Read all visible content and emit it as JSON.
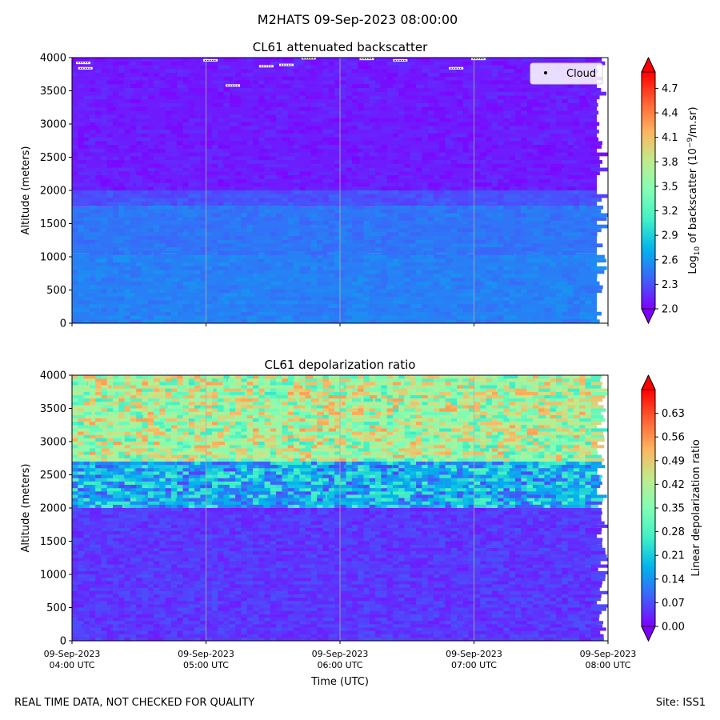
{
  "figure": {
    "suptitle": "M2HATS 09-Sep-2023 08:00:00",
    "footer_left": "REAL TIME DATA, NOT CHECKED FOR QUALITY",
    "footer_right": "Site: ISS1"
  },
  "colors": {
    "rainbow": [
      "#8000ff",
      "#3f61fa",
      "#01b3ec",
      "#3ff0c7",
      "#81feb4",
      "#c0eb8d",
      "#ffb360",
      "#ff6032",
      "#ff0000"
    ],
    "gridline": "#b0b0b0",
    "cloud_marker": "#000000"
  },
  "chart_data": [
    {
      "type": "heatmap",
      "title": "CL61 attenuated backscatter",
      "xlabel": "",
      "ylabel": "Altitude (meters)",
      "x_ticks": [
        "09-Sep-2023\n04:00 UTC",
        "09-Sep-2023\n05:00 UTC",
        "09-Sep-2023\n06:00 UTC",
        "09-Sep-2023\n07:00 UTC",
        "09-Sep-2023\n08:00 UTC"
      ],
      "x_tick_labels_shown": false,
      "y_ticks": [
        0,
        500,
        1000,
        1500,
        2000,
        2500,
        3000,
        3500,
        4000
      ],
      "ylim": [
        0,
        4000
      ],
      "xlim": [
        "2023-09-09T04:00",
        "2023-09-09T08:00"
      ],
      "data_end": "2023-09-09T07:55",
      "grid": "vertical lines at hourly ticks",
      "colorbar": {
        "label": "Log10 of backscatter (10^-9/m.sr)",
        "label_parts": [
          "Log",
          "10",
          " of backscatter (10",
          "−9",
          "/m.sr)"
        ],
        "range": [
          2.0,
          4.9
        ],
        "ticks": [
          "2.0",
          "2.3",
          "2.6",
          "2.9",
          "3.2",
          "3.5",
          "3.8",
          "4.1",
          "4.4",
          "4.7"
        ],
        "extend": "both"
      },
      "legend": {
        "entries": [
          "Cloud"
        ],
        "location": "upper right"
      },
      "layers": [
        {
          "alt_range": [
            0,
            1050
          ],
          "value": 2.5
        },
        {
          "alt_range": [
            1050,
            1750
          ],
          "value": 2.45
        },
        {
          "alt_range": [
            1750,
            2000
          ],
          "value": 2.3
        },
        {
          "alt_range": [
            2000,
            4000
          ],
          "value": 2.1
        }
      ],
      "cloud_points": [
        {
          "time": "04:05",
          "alt": 3920
        },
        {
          "time": "04:06",
          "alt": 3840
        },
        {
          "time": "05:02",
          "alt": 3960
        },
        {
          "time": "05:12",
          "alt": 3580
        },
        {
          "time": "05:27",
          "alt": 3870
        },
        {
          "time": "05:36",
          "alt": 3890
        },
        {
          "time": "05:46",
          "alt": 3990
        },
        {
          "time": "06:12",
          "alt": 3980
        },
        {
          "time": "06:27",
          "alt": 3960
        },
        {
          "time": "06:52",
          "alt": 3840
        },
        {
          "time": "07:02",
          "alt": 3980
        }
      ]
    },
    {
      "type": "heatmap",
      "title": "CL61 depolarization ratio",
      "xlabel": "Time (UTC)",
      "ylabel": "Altitude (meters)",
      "x_ticks": [
        "09-Sep-2023\n04:00 UTC",
        "09-Sep-2023\n05:00 UTC",
        "09-Sep-2023\n06:00 UTC",
        "09-Sep-2023\n07:00 UTC",
        "09-Sep-2023\n08:00 UTC"
      ],
      "y_ticks": [
        0,
        500,
        1000,
        1500,
        2000,
        2500,
        3000,
        3500,
        4000
      ],
      "ylim": [
        0,
        4000
      ],
      "xlim": [
        "2023-09-09T04:00",
        "2023-09-09T08:00"
      ],
      "data_end": "2023-09-09T07:55",
      "grid": "vertical lines at hourly ticks",
      "colorbar": {
        "label": "Linear depolarization ratio",
        "range": [
          0.0,
          0.7
        ],
        "ticks": [
          "0.00",
          "0.07",
          "0.14",
          "0.21",
          "0.28",
          "0.35",
          "0.42",
          "0.49",
          "0.56",
          "0.63"
        ],
        "extend": "both"
      },
      "layers": [
        {
          "alt_range": [
            0,
            1000
          ],
          "value": 0.05
        },
        {
          "alt_range": [
            1000,
            2000
          ],
          "value": 0.05
        },
        {
          "alt_range": [
            2000,
            2700
          ],
          "value": 0.17
        },
        {
          "alt_range": [
            2700,
            4000
          ],
          "value": 0.4
        }
      ]
    }
  ]
}
